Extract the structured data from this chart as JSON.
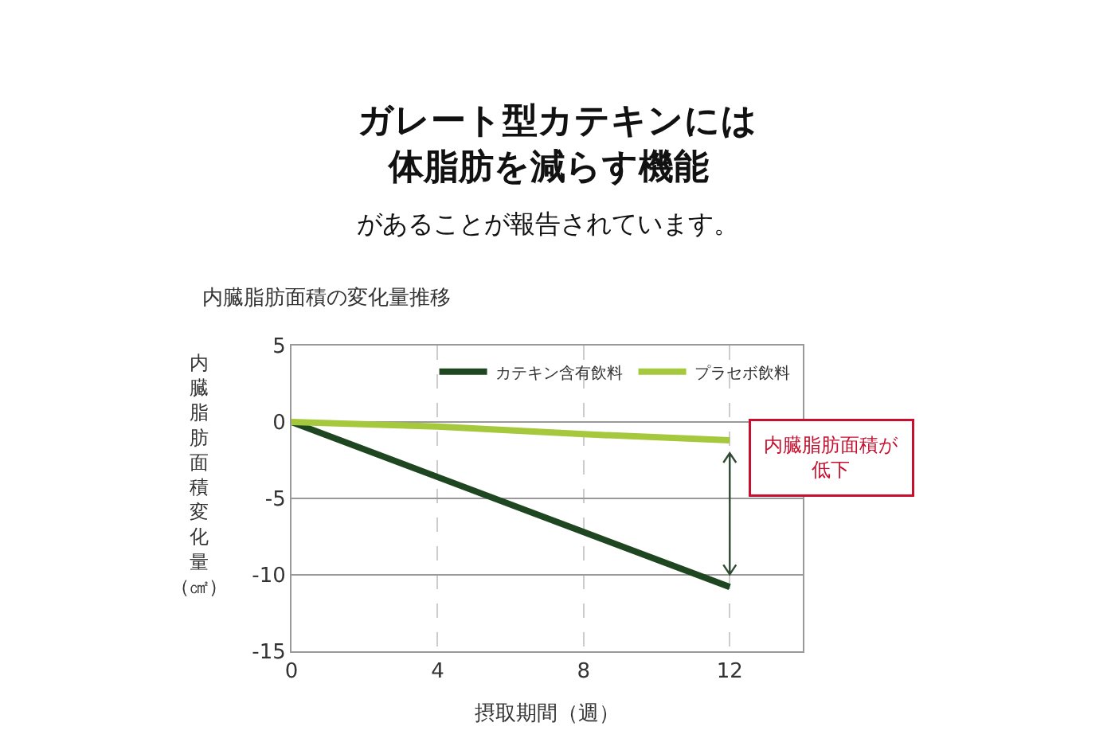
{
  "chart_data": {
    "type": "line",
    "title": "ガレート型カテキンには",
    "subtitle": "体脂肪を減らす機能",
    "xlabel": "摂取期間（週）",
    "ylabel": "内臓脂肪面積変化量（㎠）",
    "x": [
      0,
      4,
      8,
      12
    ],
    "series": [
      {
        "name": "カテキン含有飲料",
        "color": "#1e4620",
        "values": [
          0,
          -3.6,
          -7.2,
          -10.8
        ]
      },
      {
        "name": "プラセボ飲料",
        "color": "#a5c83c",
        "values": [
          0,
          -0.3,
          -0.8,
          -1.2
        ]
      }
    ],
    "xlim": [
      0,
      14
    ],
    "xticks": [
      0,
      4,
      8,
      12
    ],
    "ylim": [
      -15,
      5
    ],
    "yticks": [
      5,
      0,
      -5,
      -10,
      -15
    ],
    "grid": true,
    "legend": "top right",
    "marker": "none",
    "line_style": "solid",
    "annotations": [
      "があることが報告されています。",
      "内臓脂肪面積の変化量推移",
      "内臓脂肪面積が低下"
    ]
  }
}
